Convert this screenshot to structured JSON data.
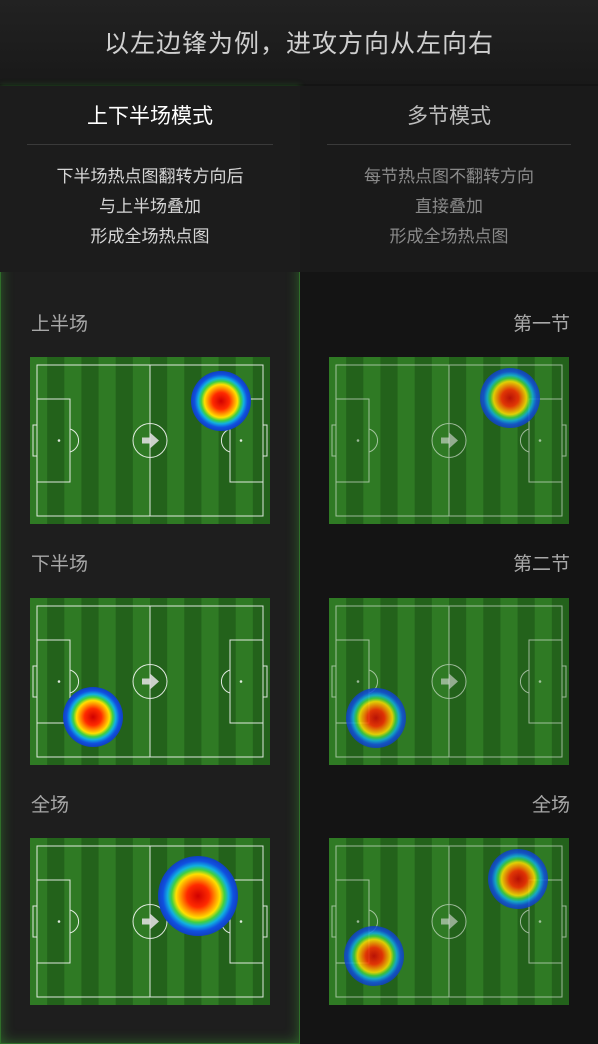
{
  "header": {
    "title": "以左边锋为例，进攻方向从左向右"
  },
  "modes": [
    {
      "title": "上下半场模式",
      "description": [
        "下半场热点图翻转方向后",
        "与上半场叠加",
        "形成全场热点图"
      ],
      "active": true,
      "sections": [
        {
          "label": "上半场"
        },
        {
          "label": "下半场"
        },
        {
          "label": "全场"
        }
      ]
    },
    {
      "title": "多节模式",
      "description": [
        "每节热点图不翻转方向",
        "直接叠加",
        "形成全场热点图"
      ],
      "active": false,
      "sections": [
        {
          "label": "第一节"
        },
        {
          "label": "第二节"
        },
        {
          "label": "全场"
        }
      ]
    }
  ],
  "icons": {
    "direction_arrow": "arrow-right-icon"
  },
  "colors": {
    "active_glow": "#46c83c",
    "pitch_light": "#2f7a24",
    "pitch_dark": "#23621b",
    "heat_core": "#e01010",
    "heat_mid": "#f0e010",
    "heat_outer": "#1050e0"
  }
}
